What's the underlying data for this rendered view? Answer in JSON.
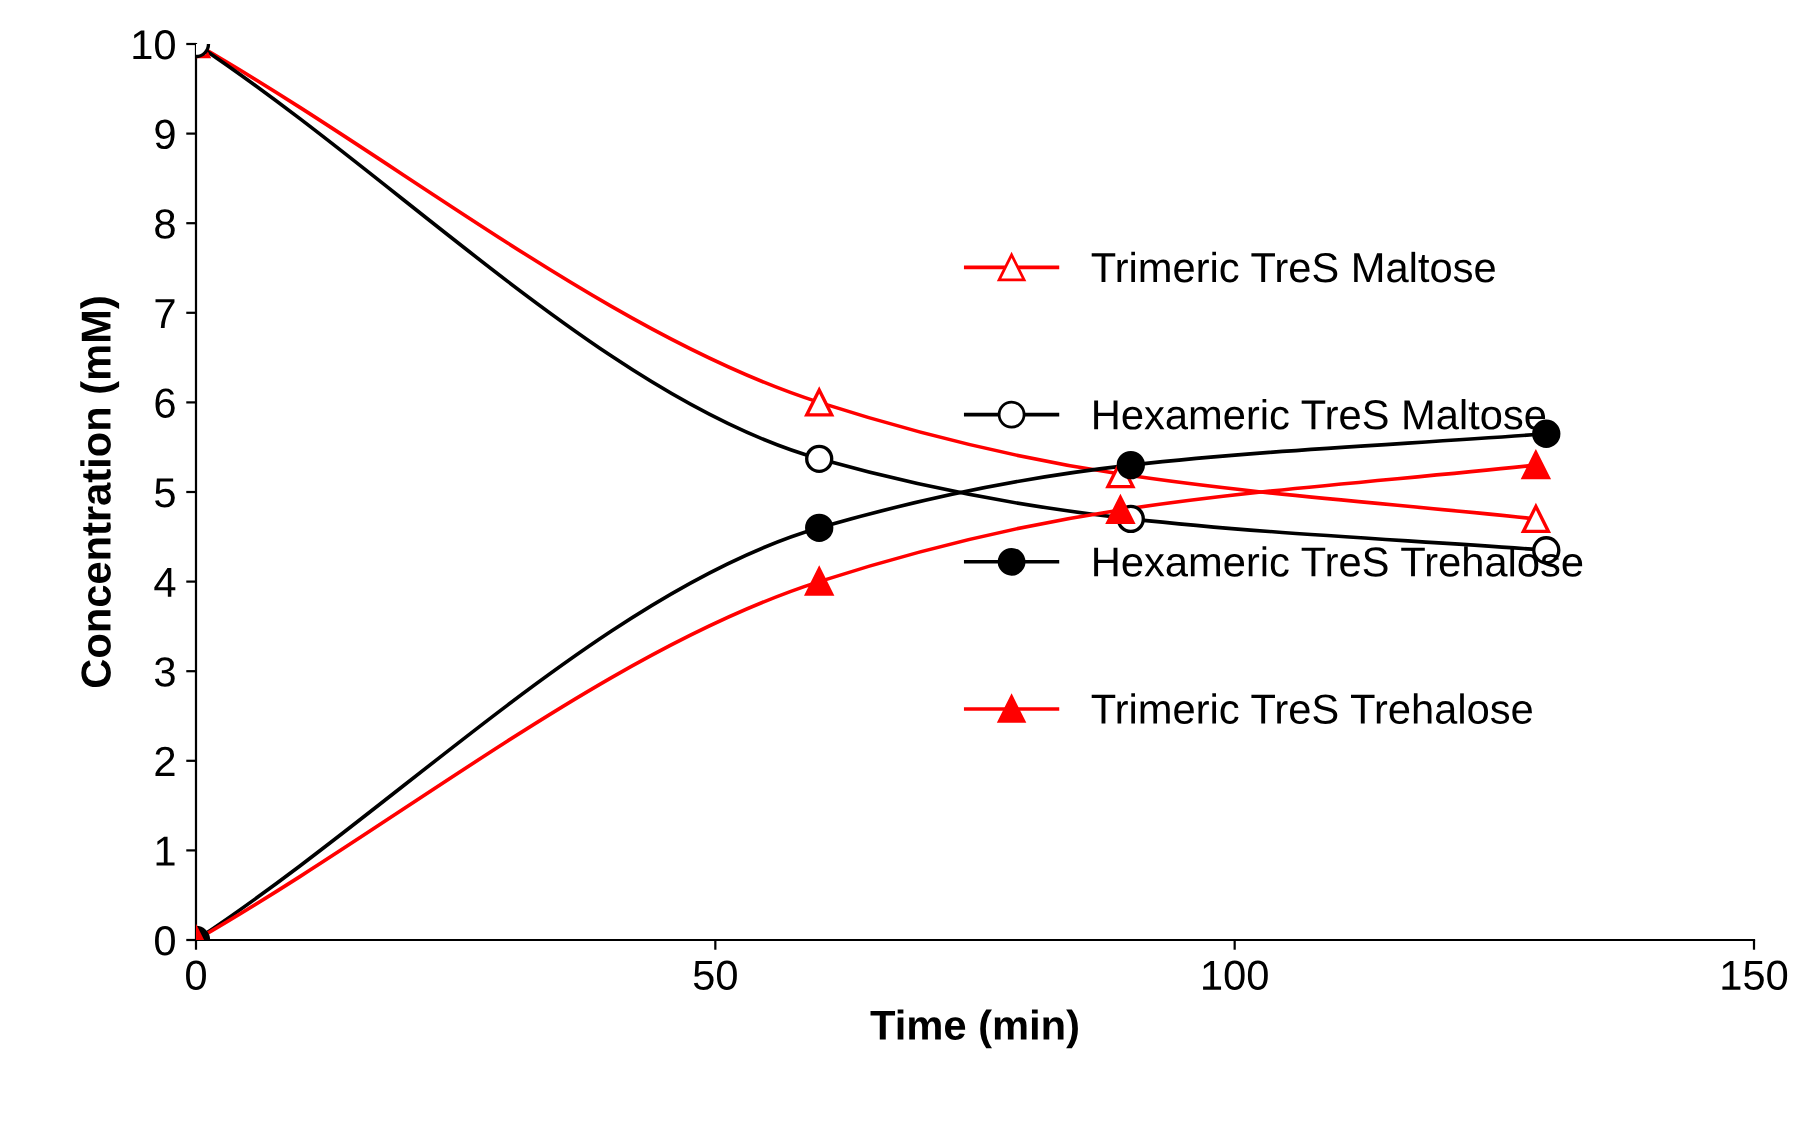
{
  "chart_data": {
    "type": "line",
    "xlabel": "Time (min)",
    "ylabel": "Concentration (mM)",
    "xlim": [
      0,
      150
    ],
    "xticks": [
      0,
      50,
      100,
      150
    ],
    "ylim": [
      0,
      10
    ],
    "yticks": [
      0,
      1,
      2,
      3,
      4,
      5,
      6,
      7,
      8,
      9,
      10
    ],
    "grid": false,
    "legend": "right",
    "line_style": "solid",
    "series": [
      {
        "name": "Trimeric TreS Maltose",
        "color": "#ff0000",
        "marker": "triangle",
        "x": [
          0,
          60,
          89,
          129
        ],
        "values": [
          10,
          6.0,
          5.2,
          4.7
        ]
      },
      {
        "name": "Hexameric TreS Maltose",
        "color": "#000000",
        "marker": "circle",
        "x": [
          0,
          60,
          90,
          130
        ],
        "values": [
          10,
          5.37,
          4.7,
          4.35
        ]
      },
      {
        "name": "Hexameric TreS Trehalose",
        "color": "#000000",
        "marker": "circle",
        "x": [
          0,
          60,
          90,
          130
        ],
        "values": [
          0,
          4.6,
          5.3,
          5.65
        ]
      },
      {
        "name": "Trimeric TreS Trehalose",
        "color": "#ff0000",
        "marker": "triangle",
        "x": [
          0,
          60,
          89,
          129
        ],
        "values": [
          0,
          4.0,
          4.8,
          5.3
        ]
      }
    ]
  }
}
